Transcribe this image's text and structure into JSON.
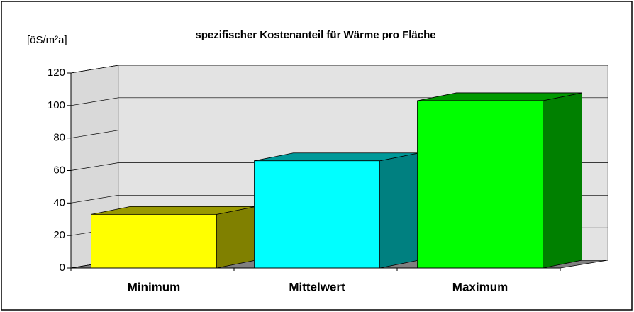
{
  "chart_data": {
    "type": "bar3d",
    "title": "spezifischer Kostenanteil für Wärme pro Fläche",
    "y_label": "[öS/m²a]",
    "categories": [
      "Minimum",
      "Mittelwert",
      "Maximum"
    ],
    "values": [
      33,
      66,
      103
    ],
    "colors": [
      "#ffff00",
      "#00ffff",
      "#00ff00"
    ],
    "ylim": [
      0,
      120
    ],
    "yticks": [
      0,
      20,
      40,
      60,
      80,
      100,
      120
    ],
    "grid": true
  }
}
